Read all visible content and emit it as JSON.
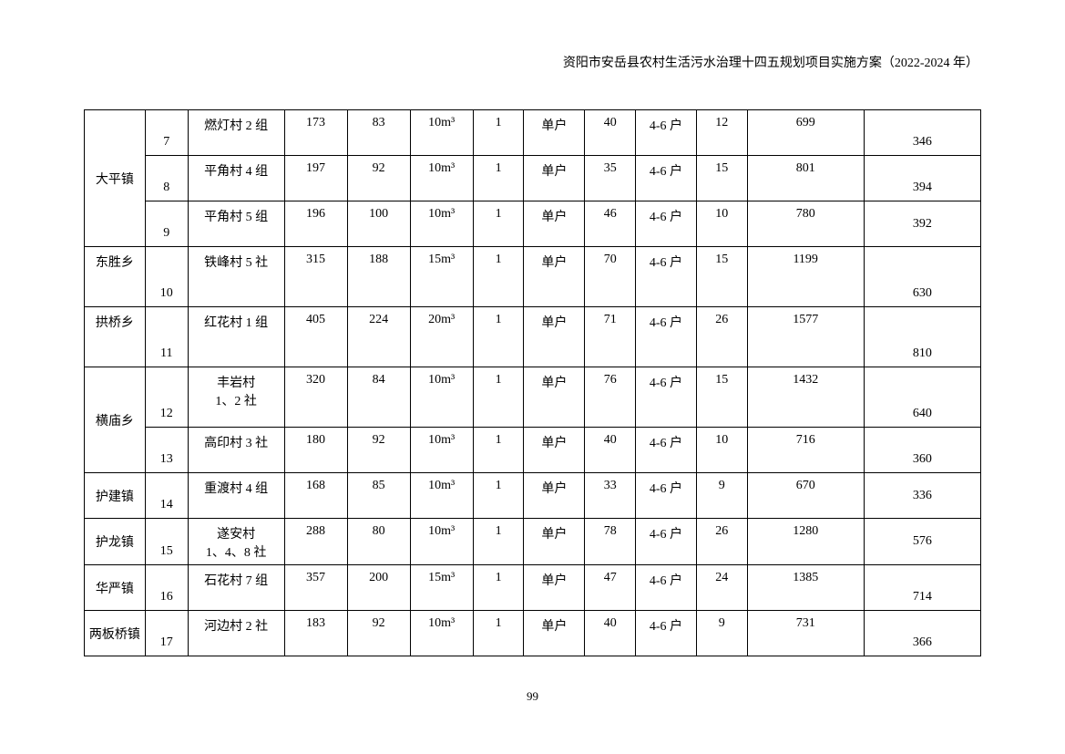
{
  "header": {
    "title": "资阳市安岳县农村生活污水治理十四五规划项目实施方案（2022-2024 年）"
  },
  "table": {
    "type": "table",
    "background_color": "#ffffff",
    "border_color": "#000000",
    "font_size": 14,
    "groups": [
      {
        "township": "大平镇",
        "rowspan": 3,
        "rows": [
          {
            "seq": "7",
            "village": "燃灯村 2 组",
            "c4": "173",
            "c5": "83",
            "c6": "10m³",
            "c7": "1",
            "c8": "单户",
            "c9": "40",
            "c10": "4-6 户",
            "c11": "12",
            "c12": "699",
            "c13": "346",
            "va_data": "top",
            "va_last": "bottom"
          },
          {
            "seq": "8",
            "village": "平角村 4 组",
            "c4": "197",
            "c5": "92",
            "c6": "10m³",
            "c7": "1",
            "c8": "单户",
            "c9": "35",
            "c10": "4-6 户",
            "c11": "15",
            "c12": "801",
            "c13": "394",
            "va_data": "top",
            "va_last": "bottom"
          },
          {
            "seq": "9",
            "village": "平角村 5 组",
            "c4": "196",
            "c5": "100",
            "c6": "10m³",
            "c7": "1",
            "c8": "单户",
            "c9": "46",
            "c10": "4-6 户",
            "c11": "10",
            "c12": "780",
            "c13": "392",
            "va_data": "top",
            "va_last": "middle"
          }
        ]
      },
      {
        "township": "东胜乡",
        "rowspan": 1,
        "rows": [
          {
            "seq": "10",
            "village": "铁峰村 5 社",
            "c4": "315",
            "c5": "188",
            "c6": "15m³",
            "c7": "1",
            "c8": "单户",
            "c9": "70",
            "c10": "4-6 户",
            "c11": "15",
            "c12": "1199",
            "c13": "630",
            "tall": true,
            "va_data": "top",
            "va_last": "bottom",
            "va_town": "top"
          }
        ]
      },
      {
        "township": "拱桥乡",
        "rowspan": 1,
        "rows": [
          {
            "seq": "11",
            "village": "红花村 1 组",
            "c4": "405",
            "c5": "224",
            "c6": "20m³",
            "c7": "1",
            "c8": "单户",
            "c9": "71",
            "c10": "4-6 户",
            "c11": "26",
            "c12": "1577",
            "c13": "810",
            "tall": true,
            "va_data": "top",
            "va_last": "bottom",
            "va_town": "top"
          }
        ]
      },
      {
        "township": "横庙乡",
        "rowspan": 2,
        "rows": [
          {
            "seq": "12",
            "village": "丰岩村\n1、2 社",
            "c4": "320",
            "c5": "84",
            "c6": "10m³",
            "c7": "1",
            "c8": "单户",
            "c9": "76",
            "c10": "4-6 户",
            "c11": "15",
            "c12": "1432",
            "c13": "640",
            "tall": true,
            "va_data": "top",
            "va_last": "bottom"
          },
          {
            "seq": "13",
            "village": "高印村 3 社",
            "c4": "180",
            "c5": "92",
            "c6": "10m³",
            "c7": "1",
            "c8": "单户",
            "c9": "40",
            "c10": "4-6 户",
            "c11": "10",
            "c12": "716",
            "c13": "360",
            "va_data": "top",
            "va_last": "bottom"
          }
        ]
      },
      {
        "township": "护建镇",
        "rowspan": 1,
        "rows": [
          {
            "seq": "14",
            "village": "重渡村 4 组",
            "c4": "168",
            "c5": "85",
            "c6": "10m³",
            "c7": "1",
            "c8": "单户",
            "c9": "33",
            "c10": "4-6 户",
            "c11": "9",
            "c12": "670",
            "c13": "336",
            "va_data": "top",
            "va_last": "middle"
          }
        ]
      },
      {
        "township": "护龙镇",
        "rowspan": 1,
        "rows": [
          {
            "seq": "15",
            "village": "遂安村\n1、4、8 社",
            "c4": "288",
            "c5": "80",
            "c6": "10m³",
            "c7": "1",
            "c8": "单户",
            "c9": "78",
            "c10": "4-6 户",
            "c11": "26",
            "c12": "1280",
            "c13": "576",
            "va_data": "top",
            "va_last": "middle"
          }
        ]
      },
      {
        "township": "华严镇",
        "rowspan": 1,
        "rows": [
          {
            "seq": "16",
            "village": "石花村 7 组",
            "c4": "357",
            "c5": "200",
            "c6": "15m³",
            "c7": "1",
            "c8": "单户",
            "c9": "47",
            "c10": "4-6 户",
            "c11": "24",
            "c12": "1385",
            "c13": "714",
            "va_data": "top",
            "va_last": "bottom"
          }
        ]
      },
      {
        "township": "两板桥镇",
        "rowspan": 1,
        "rows": [
          {
            "seq": "17",
            "village": "河边村 2 社",
            "c4": "183",
            "c5": "92",
            "c6": "10m³",
            "c7": "1",
            "c8": "单户",
            "c9": "40",
            "c10": "4-6 户",
            "c11": "9",
            "c12": "731",
            "c13": "366",
            "va_data": "top",
            "va_last": "bottom"
          }
        ]
      }
    ]
  },
  "footer": {
    "page_number": "99"
  }
}
